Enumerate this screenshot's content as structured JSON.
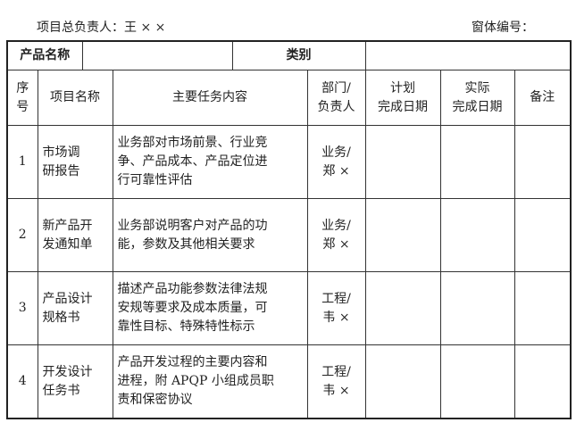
{
  "header": {
    "leader": "项目总负责人：王 × ×",
    "form_no": "窗体编号："
  },
  "product_row": {
    "name_label": "产品名称",
    "name_value": "",
    "category_label": "类别",
    "category_value": ""
  },
  "columns": {
    "seq_1": "序",
    "seq_2": "号",
    "name": "项目名称",
    "content": "主要任务内容",
    "dept_1": "部门/",
    "dept_2": "负责人",
    "plan_1": "计划",
    "plan_2": "完成日期",
    "actual_1": "实际",
    "actual_2": "完成日期",
    "note": "备注"
  },
  "rows": [
    {
      "seq": "1",
      "name_1": "市场调",
      "name_2": "研报告",
      "content_1": "业务部对市场前景、行业竞",
      "content_2": "争、产品成本、产品定位进",
      "content_3": "行可靠性评估",
      "dept_1": "业务/",
      "dept_2": "郑 ×",
      "plan": "",
      "actual": "",
      "note": ""
    },
    {
      "seq": "2",
      "name_1": "新产品开",
      "name_2": "发通知单",
      "content_1": "业务部说明客户对产品的功",
      "content_2": "能，参数及其他相关要求",
      "content_3": "",
      "dept_1": "业务/",
      "dept_2": "郑 ×",
      "plan": "",
      "actual": "",
      "note": ""
    },
    {
      "seq": "3",
      "name_1": "产品设计",
      "name_2": "规格书",
      "content_1": "描述产品功能参数法律法规",
      "content_2": "安规等要求及成本质量，可",
      "content_3": "靠性目标、特殊特性标示",
      "dept_1": "工程/",
      "dept_2": "韦 ×",
      "plan": "",
      "actual": "",
      "note": ""
    },
    {
      "seq": "4",
      "name_1": "开发设计",
      "name_2": "任务书",
      "content_1": "产品开发过程的主要内容和",
      "content_2": "进程，附 APQP 小组成员职",
      "content_3": "责和保密协议",
      "dept_1": "工程/",
      "dept_2": "韦 ×",
      "plan": "",
      "actual": "",
      "note": ""
    }
  ]
}
